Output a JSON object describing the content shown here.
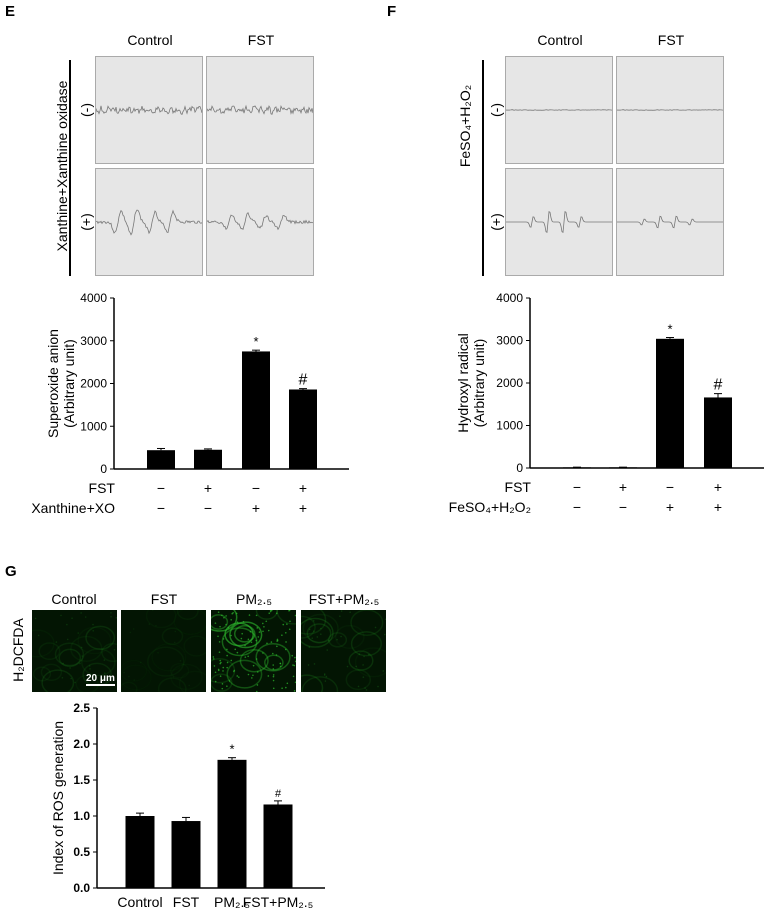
{
  "panel_E": {
    "letter": "E",
    "columns": [
      "Control",
      "FST"
    ],
    "side_label": "Xanthine+Xanthine oxidase",
    "rows": [
      "(-)",
      "(+)"
    ]
  },
  "panel_F": {
    "letter": "F",
    "columns": [
      "Control",
      "FST"
    ],
    "side_label": "FeSO₄+H₂O₂",
    "rows": [
      "(-)",
      "(+)"
    ]
  },
  "panel_G": {
    "letter": "G",
    "columns": [
      "Control",
      "FST",
      "PM₂.₅",
      "FST+PM₂.₅"
    ],
    "row_label": "H₂DCFDA",
    "scale_bar": "20 μm",
    "image_color": "#2fbf2f"
  },
  "chart_data": [
    {
      "type": "bar",
      "ylabel": [
        "Superoxide anion",
        "(Arbitrary unit)"
      ],
      "ylim": [
        0,
        4000
      ],
      "yticks": [
        0,
        1000,
        2000,
        3000,
        4000
      ],
      "values": [
        440,
        450,
        2750,
        1860
      ],
      "errors": [
        40,
        20,
        30,
        20
      ],
      "annotations": [
        "",
        "",
        "*",
        "#"
      ],
      "condition_rows": [
        {
          "label": "FST",
          "signs": [
            "−",
            "+",
            "−",
            "+"
          ]
        },
        {
          "label": "Xanthine+XO",
          "signs": [
            "−",
            "−",
            "+",
            "+"
          ]
        }
      ],
      "bar_color": "#000000"
    },
    {
      "type": "bar",
      "ylabel": [
        "Hydroxyl radical",
        "(Arbitrary unit)"
      ],
      "ylim": [
        0,
        4000
      ],
      "yticks": [
        0,
        1000,
        2000,
        3000,
        4000
      ],
      "values": [
        15,
        15,
        3040,
        1660
      ],
      "errors": [
        5,
        5,
        30,
        90
      ],
      "annotations": [
        "",
        "",
        "*",
        "#"
      ],
      "condition_rows": [
        {
          "label": "FST",
          "signs": [
            "−",
            "+",
            "−",
            "+"
          ]
        },
        {
          "label": "FeSO₄+H₂O₂",
          "signs": [
            "−",
            "−",
            "+",
            "+"
          ]
        }
      ],
      "bar_color": "#000000"
    },
    {
      "type": "bar",
      "ylabel": [
        "Index of ROS generation"
      ],
      "ylim": [
        0,
        2.5
      ],
      "yticks": [
        "0.0",
        "0.5",
        "1.0",
        "1.5",
        "2.0",
        "2.5"
      ],
      "categories": [
        "Control",
        "FST",
        "PM₂.₅",
        "FST+PM₂.₅"
      ],
      "values": [
        1.0,
        0.93,
        1.78,
        1.16
      ],
      "errors": [
        0.04,
        0.05,
        0.03,
        0.05
      ],
      "annotations": [
        "",
        "",
        "*",
        "#"
      ],
      "bar_color": "#000000"
    }
  ]
}
